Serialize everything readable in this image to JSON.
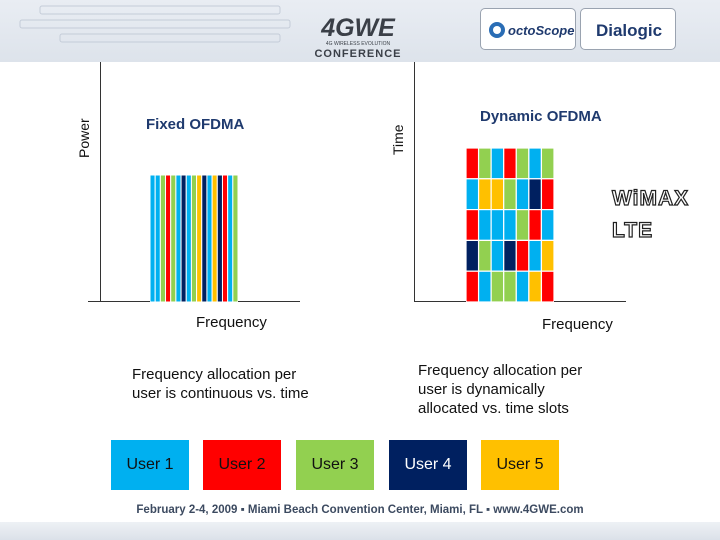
{
  "header": {
    "logo_main": "4GWE",
    "logo_tagline": "4G WIRELESS EVOLUTION",
    "logo_sub": "CONFERENCE",
    "partner_1": "octoScope",
    "partner_2": "Dialogic"
  },
  "left_panel": {
    "y_axis_label": "Power",
    "title": "Fixed OFDMA",
    "x_axis_label": "Frequency",
    "description_line1": "Frequency allocation per",
    "description_line2": "user is continuous vs. time",
    "bar_colors": [
      "#00b0f0",
      "#00b0f0",
      "#92d050",
      "#ff0000",
      "#92d050",
      "#00b0f0",
      "#002060",
      "#00b0f0",
      "#92d050",
      "#ffc000",
      "#002060",
      "#00b0f0",
      "#ffc000",
      "#002060",
      "#ff0000",
      "#00b0f0",
      "#92d050"
    ]
  },
  "right_panel": {
    "y_axis_label": "Time",
    "title": "Dynamic OFDMA",
    "x_axis_label": "Frequency",
    "description_line1": "Frequency allocation per",
    "description_line2": "user is dynamically",
    "description_line3": "allocated vs. time slots",
    "grid_colors": [
      [
        "#ff0000",
        "#00b0f0",
        "#ff0000",
        "#002060",
        "#ff0000"
      ],
      [
        "#92d050",
        "#ffc000",
        "#00b0f0",
        "#92d050",
        "#00b0f0"
      ],
      [
        "#00b0f0",
        "#ffc000",
        "#00b0f0",
        "#00b0f0",
        "#92d050"
      ],
      [
        "#ff0000",
        "#92d050",
        "#00b0f0",
        "#002060",
        "#92d050"
      ],
      [
        "#92d050",
        "#00b0f0",
        "#92d050",
        "#ff0000",
        "#00b0f0"
      ],
      [
        "#00b0f0",
        "#002060",
        "#ff0000",
        "#00b0f0",
        "#ffc000"
      ],
      [
        "#92d050",
        "#ff0000",
        "#00b0f0",
        "#ffc000",
        "#ff0000"
      ]
    ]
  },
  "badges": {
    "line1": "WiMAX",
    "line2": "LTE"
  },
  "users": [
    {
      "label": "User 1",
      "color": "#00b0f0"
    },
    {
      "label": "User 2",
      "color": "#ff0000"
    },
    {
      "label": "User 3",
      "color": "#92d050"
    },
    {
      "label": "User 4",
      "color": "#002060"
    },
    {
      "label": "User 5",
      "color": "#ffc000"
    }
  ],
  "footer": {
    "text": "February 2-4, 2009  ▪  Miami Beach Convention Center, Miami, FL  ▪  www.4GWE.com"
  }
}
